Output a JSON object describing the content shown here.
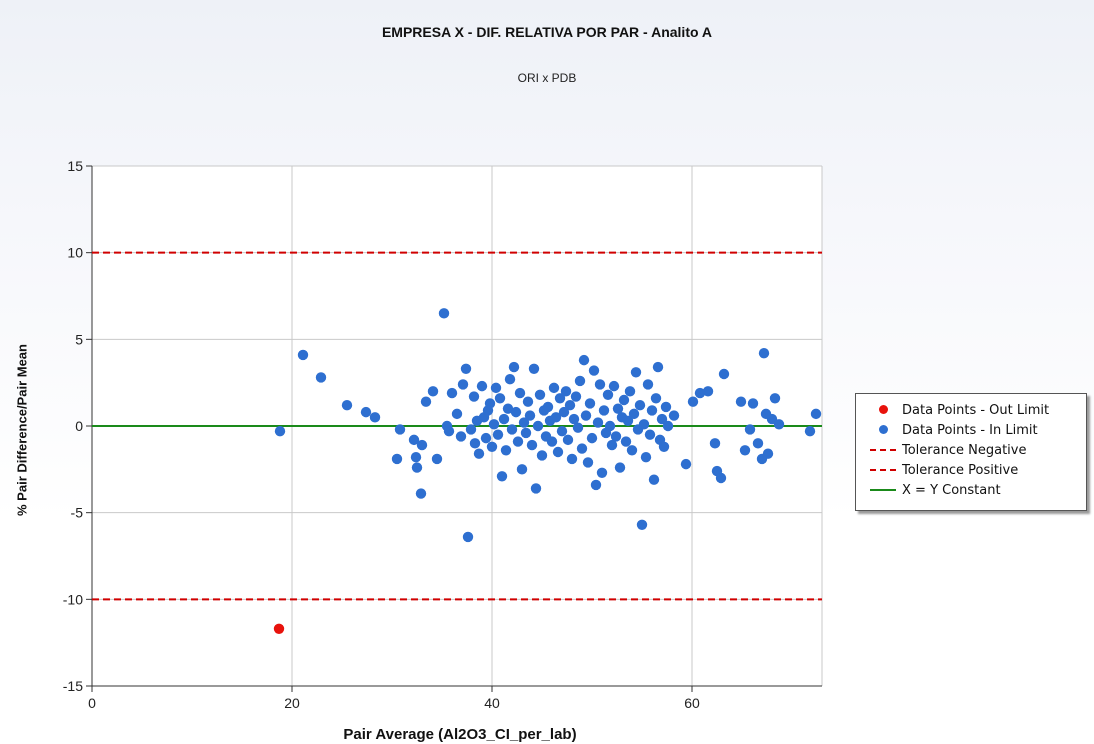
{
  "title": "EMPRESA X - DIF. RELATIVA POR PAR - Analito A",
  "subtitle": "ORI x PDB",
  "chart_data": {
    "type": "scatter",
    "xlabel": "Pair Average (Al2O3_CI_per_lab)",
    "ylabel": "% Pair Difference/Pair Mean",
    "xlim": [
      0,
      73
    ],
    "ylim": [
      -15,
      15
    ],
    "x_ticks": [
      "0",
      "20",
      "40",
      "60"
    ],
    "y_ticks": [
      "15",
      "10",
      "5",
      "0",
      "-5",
      "-10",
      "-15"
    ],
    "grid": "on",
    "legend_position": "right",
    "colors": {
      "out": "#e8120c",
      "in": "#2e6fd0",
      "tolerance": "#d00000",
      "constant": "#1a8a1a"
    },
    "reference_lines": [
      {
        "name": "Tolerance Negative",
        "y": -10,
        "style": "dashed",
        "color": "#d00000"
      },
      {
        "name": "Tolerance Positive",
        "y": 10,
        "style": "dashed",
        "color": "#d00000"
      },
      {
        "name": "X = Y Constant",
        "y": 0,
        "style": "solid",
        "color": "#1a8a1a"
      }
    ],
    "series": [
      {
        "name": "Data Points - Out Limit",
        "color": "#e8120c",
        "points": [
          [
            18.7,
            -11.7
          ]
        ]
      },
      {
        "name": "Data Points - In Limit",
        "color": "#2e6fd0",
        "points": [
          [
            18.8,
            -0.3
          ],
          [
            21.1,
            4.1
          ],
          [
            22.9,
            2.8
          ],
          [
            25.5,
            1.2
          ],
          [
            27.4,
            0.8
          ],
          [
            28.3,
            0.5
          ],
          [
            30.5,
            -1.9
          ],
          [
            30.8,
            -0.2
          ],
          [
            32.2,
            -0.8
          ],
          [
            32.4,
            -1.8
          ],
          [
            32.5,
            -2.4
          ],
          [
            32.9,
            -3.9
          ],
          [
            33.0,
            -1.1
          ],
          [
            33.4,
            1.4
          ],
          [
            34.1,
            2.0
          ],
          [
            34.5,
            -1.9
          ],
          [
            35.2,
            6.5
          ],
          [
            35.5,
            0.0
          ],
          [
            35.7,
            -0.3
          ],
          [
            36.0,
            1.9
          ],
          [
            36.5,
            0.7
          ],
          [
            36.9,
            -0.6
          ],
          [
            37.1,
            2.4
          ],
          [
            37.4,
            3.3
          ],
          [
            37.6,
            -6.4
          ],
          [
            37.9,
            -0.2
          ],
          [
            38.2,
            1.7
          ],
          [
            38.3,
            -1.0
          ],
          [
            38.5,
            0.3
          ],
          [
            38.7,
            -1.6
          ],
          [
            39.0,
            2.3
          ],
          [
            39.2,
            0.5
          ],
          [
            39.4,
            -0.7
          ],
          [
            39.6,
            0.9
          ],
          [
            39.8,
            1.3
          ],
          [
            40.0,
            -1.2
          ],
          [
            40.2,
            0.1
          ],
          [
            40.4,
            2.2
          ],
          [
            40.6,
            -0.5
          ],
          [
            40.8,
            1.6
          ],
          [
            41.0,
            -2.9
          ],
          [
            41.2,
            0.4
          ],
          [
            41.4,
            -1.4
          ],
          [
            41.6,
            1.0
          ],
          [
            41.8,
            2.7
          ],
          [
            42.0,
            -0.2
          ],
          [
            42.2,
            3.4
          ],
          [
            42.4,
            0.8
          ],
          [
            42.6,
            -0.9
          ],
          [
            42.8,
            1.9
          ],
          [
            43.0,
            -2.5
          ],
          [
            43.2,
            0.2
          ],
          [
            43.4,
            -0.4
          ],
          [
            43.6,
            1.4
          ],
          [
            43.8,
            0.6
          ],
          [
            44.0,
            -1.1
          ],
          [
            44.2,
            3.3
          ],
          [
            44.4,
            -3.6
          ],
          [
            44.6,
            0.0
          ],
          [
            44.8,
            1.8
          ],
          [
            45.0,
            -1.7
          ],
          [
            45.2,
            0.9
          ],
          [
            45.4,
            -0.6
          ],
          [
            45.6,
            1.1
          ],
          [
            45.8,
            0.3
          ],
          [
            46.0,
            -0.9
          ],
          [
            46.2,
            2.2
          ],
          [
            46.4,
            0.5
          ],
          [
            46.6,
            -1.5
          ],
          [
            46.8,
            1.6
          ],
          [
            47.0,
            -0.3
          ],
          [
            47.2,
            0.8
          ],
          [
            47.4,
            2.0
          ],
          [
            47.6,
            -0.8
          ],
          [
            47.8,
            1.2
          ],
          [
            48.0,
            -1.9
          ],
          [
            48.2,
            0.4
          ],
          [
            48.4,
            1.7
          ],
          [
            48.6,
            -0.1
          ],
          [
            48.8,
            2.6
          ],
          [
            49.0,
            -1.3
          ],
          [
            49.2,
            3.8
          ],
          [
            49.4,
            0.6
          ],
          [
            49.6,
            -2.1
          ],
          [
            49.8,
            1.3
          ],
          [
            50.0,
            -0.7
          ],
          [
            50.2,
            3.2
          ],
          [
            50.4,
            -3.4
          ],
          [
            50.6,
            0.2
          ],
          [
            50.8,
            2.4
          ],
          [
            51.0,
            -2.7
          ],
          [
            51.2,
            0.9
          ],
          [
            51.4,
            -0.4
          ],
          [
            51.6,
            1.8
          ],
          [
            51.8,
            0.0
          ],
          [
            52.0,
            -1.1
          ],
          [
            52.2,
            2.3
          ],
          [
            52.4,
            -0.6
          ],
          [
            52.6,
            1.0
          ],
          [
            52.8,
            -2.4
          ],
          [
            53.0,
            0.5
          ],
          [
            53.2,
            1.5
          ],
          [
            53.4,
            -0.9
          ],
          [
            53.6,
            0.3
          ],
          [
            53.8,
            2.0
          ],
          [
            54.0,
            -1.4
          ],
          [
            54.2,
            0.7
          ],
          [
            54.4,
            3.1
          ],
          [
            54.6,
            -0.2
          ],
          [
            54.8,
            1.2
          ],
          [
            55.0,
            -5.7
          ],
          [
            55.2,
            0.1
          ],
          [
            55.4,
            -1.8
          ],
          [
            55.6,
            2.4
          ],
          [
            55.8,
            -0.5
          ],
          [
            56.0,
            0.9
          ],
          [
            56.2,
            -3.1
          ],
          [
            56.4,
            1.6
          ],
          [
            56.6,
            3.4
          ],
          [
            56.8,
            -0.8
          ],
          [
            57.0,
            0.4
          ],
          [
            57.2,
            -1.2
          ],
          [
            57.4,
            1.1
          ],
          [
            57.6,
            0.0
          ],
          [
            58.2,
            0.6
          ],
          [
            59.4,
            -2.2
          ],
          [
            60.1,
            1.4
          ],
          [
            60.8,
            1.9
          ],
          [
            61.6,
            2.0
          ],
          [
            62.3,
            -1.0
          ],
          [
            62.5,
            -2.6
          ],
          [
            62.9,
            -3.0
          ],
          [
            63.2,
            3.0
          ],
          [
            64.9,
            1.4
          ],
          [
            65.3,
            -1.4
          ],
          [
            65.8,
            -0.2
          ],
          [
            66.1,
            1.3
          ],
          [
            66.6,
            -1.0
          ],
          [
            67.0,
            -1.9
          ],
          [
            67.2,
            4.2
          ],
          [
            67.4,
            0.7
          ],
          [
            67.6,
            -1.6
          ],
          [
            68.0,
            0.4
          ],
          [
            68.3,
            1.6
          ],
          [
            68.7,
            0.1
          ],
          [
            71.8,
            -0.3
          ],
          [
            72.4,
            0.7
          ]
        ]
      }
    ]
  },
  "legend": {
    "items": [
      {
        "label": "Data Points - Out Limit",
        "kind": "dot",
        "color": "#e8120c"
      },
      {
        "label": "Data Points - In Limit",
        "kind": "dot",
        "color": "#2e6fd0"
      },
      {
        "label": "Tolerance Negative",
        "kind": "dash",
        "color": "#d00000"
      },
      {
        "label": "Tolerance Positive",
        "kind": "dash",
        "color": "#d00000"
      },
      {
        "label": "X = Y Constant",
        "kind": "line",
        "color": "#1a8a1a"
      }
    ]
  }
}
